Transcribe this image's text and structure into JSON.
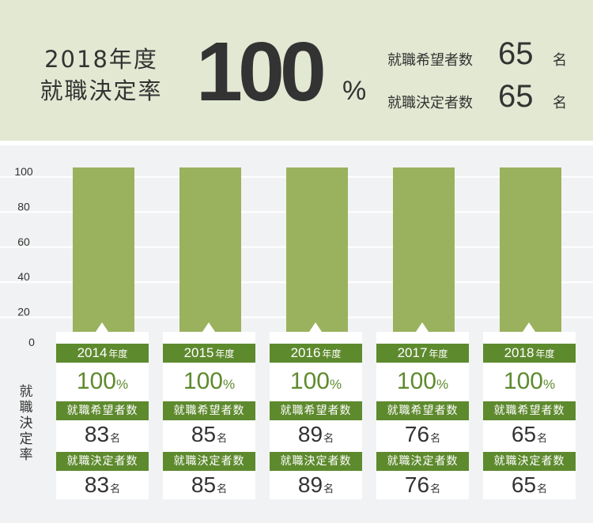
{
  "summary": {
    "year_label": "2018年度",
    "rate_label": "就職決定率",
    "rate_value": "100",
    "rate_unit": "%",
    "stats": [
      {
        "label": "就職希望者数",
        "value": "65",
        "unit": "名"
      },
      {
        "label": "就職決定者数",
        "value": "65",
        "unit": "名"
      }
    ]
  },
  "side_label": "就職決定率",
  "colors": {
    "header_bg": "#e2e8d2",
    "bar": "#9ab25e",
    "badge": "#5e8a2e",
    "plot_bg": "#f1f2f3"
  },
  "chart_data": {
    "type": "bar",
    "categories": [
      "2014",
      "2015",
      "2016",
      "2017",
      "2018"
    ],
    "values": [
      100,
      100,
      100,
      100,
      100
    ],
    "yticks": [
      "0",
      "20",
      "40",
      "60",
      "80",
      "100"
    ],
    "ylim": [
      0,
      100
    ],
    "grid": true
  },
  "cards": [
    {
      "year": "2014",
      "year_unit": "年度",
      "rate": "100",
      "rate_unit": "%",
      "applicants_label": "就職希望者数",
      "applicants": "83",
      "hired_label": "就職決定者数",
      "hired": "83",
      "unit": "名"
    },
    {
      "year": "2015",
      "year_unit": "年度",
      "rate": "100",
      "rate_unit": "%",
      "applicants_label": "就職希望者数",
      "applicants": "85",
      "hired_label": "就職決定者数",
      "hired": "85",
      "unit": "名"
    },
    {
      "year": "2016",
      "year_unit": "年度",
      "rate": "100",
      "rate_unit": "%",
      "applicants_label": "就職希望者数",
      "applicants": "89",
      "hired_label": "就職決定者数",
      "hired": "89",
      "unit": "名"
    },
    {
      "year": "2017",
      "year_unit": "年度",
      "rate": "100",
      "rate_unit": "%",
      "applicants_label": "就職希望者数",
      "applicants": "76",
      "hired_label": "就職決定者数",
      "hired": "76",
      "unit": "名"
    },
    {
      "year": "2018",
      "year_unit": "年度",
      "rate": "100",
      "rate_unit": "%",
      "applicants_label": "就職希望者数",
      "applicants": "65",
      "hired_label": "就職決定者数",
      "hired": "65",
      "unit": "名"
    }
  ]
}
